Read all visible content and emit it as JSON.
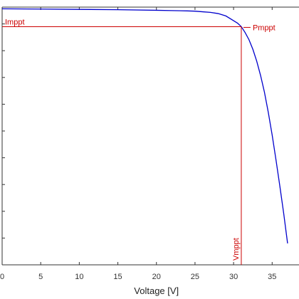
{
  "chart_data": {
    "type": "line",
    "xlabel": "Voltage [V]",
    "ylabel": "",
    "title": "",
    "xlim": [
      0,
      37
    ],
    "ylim": [
      0,
      4.4
    ],
    "x_ticks": [
      0,
      5,
      10,
      15,
      20,
      25,
      30,
      35
    ],
    "grid": false,
    "series": [
      {
        "color": "#0000cc",
        "x": [
          0,
          5,
          10,
          15,
          20,
          22,
          24,
          25,
          26,
          27,
          28,
          29,
          30,
          30.5,
          31,
          31.5,
          32,
          32.5,
          33,
          33.5,
          34,
          34.5,
          35,
          35.5,
          36,
          36.5,
          37
        ],
        "y": [
          4.3,
          4.295,
          4.29,
          4.285,
          4.275,
          4.27,
          4.265,
          4.26,
          4.25,
          4.24,
          4.22,
          4.18,
          4.1,
          4.06,
          4.0,
          3.9,
          3.78,
          3.62,
          3.42,
          3.18,
          2.9,
          2.56,
          2.18,
          1.76,
          1.32,
          0.86,
          0.36
        ]
      }
    ],
    "annotations": {
      "impp_label": "Imppt",
      "pmpp_label": "Pmppt",
      "vmpp_label": "Vmppt",
      "color": "#cc0000",
      "mpp_v": 31.0,
      "mpp_i": 4.0
    }
  }
}
